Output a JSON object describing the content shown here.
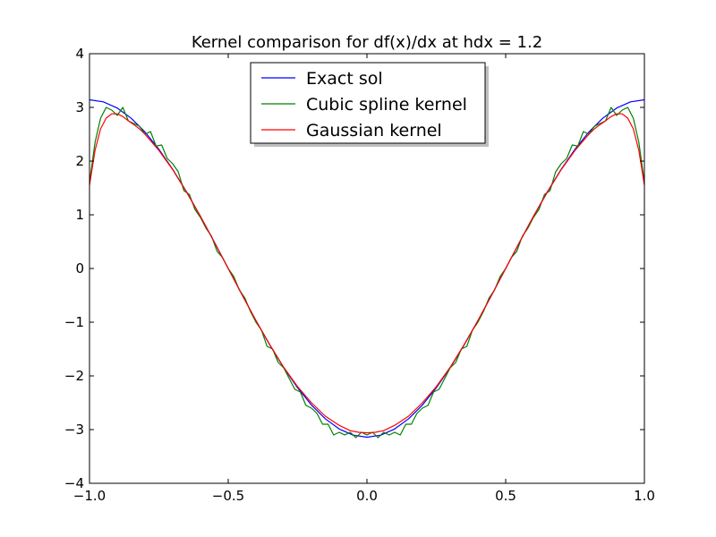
{
  "chart_data": {
    "type": "line",
    "title": "Kernel comparison for df(x)/dx at hdx = 1.2",
    "xlabel": "",
    "ylabel": "",
    "xlim": [
      -1.0,
      1.0
    ],
    "ylim": [
      -4,
      4
    ],
    "grid": false,
    "legend_position": "top-center",
    "xticks": [
      {
        "value": -1.0,
        "label": "−1.0"
      },
      {
        "value": -0.5,
        "label": "−0.5"
      },
      {
        "value": 0.0,
        "label": "0.0"
      },
      {
        "value": 0.5,
        "label": "0.5"
      },
      {
        "value": 1.0,
        "label": "1.0"
      }
    ],
    "yticks": [
      {
        "value": -4,
        "label": "−4"
      },
      {
        "value": -3,
        "label": "−3"
      },
      {
        "value": -2,
        "label": "−2"
      },
      {
        "value": -1,
        "label": "−1"
      },
      {
        "value": 0,
        "label": "0"
      },
      {
        "value": 1,
        "label": "1"
      },
      {
        "value": 2,
        "label": "2"
      },
      {
        "value": 3,
        "label": "3"
      },
      {
        "value": 4,
        "label": "4"
      }
    ],
    "series": [
      {
        "name": "Exact sol",
        "color": "#0000ff",
        "x": [
          -1.0,
          -0.95,
          -0.9,
          -0.85,
          -0.8,
          -0.75,
          -0.7,
          -0.65,
          -0.6,
          -0.55,
          -0.5,
          -0.45,
          -0.4,
          -0.35,
          -0.3,
          -0.25,
          -0.2,
          -0.15,
          -0.1,
          -0.05,
          0.0,
          0.05,
          0.1,
          0.15,
          0.2,
          0.25,
          0.3,
          0.35,
          0.4,
          0.45,
          0.5,
          0.55,
          0.6,
          0.65,
          0.7,
          0.75,
          0.8,
          0.85,
          0.9,
          0.95,
          1.0
        ],
        "y": [
          3.142,
          3.103,
          2.988,
          2.799,
          2.542,
          2.221,
          1.847,
          1.426,
          0.971,
          0.491,
          0.0,
          -0.491,
          -0.971,
          -1.426,
          -1.847,
          -2.221,
          -2.542,
          -2.799,
          -2.988,
          -3.103,
          -3.142,
          -3.103,
          -2.988,
          -2.799,
          -2.542,
          -2.221,
          -1.847,
          -1.426,
          -0.971,
          -0.491,
          0.0,
          0.491,
          0.971,
          1.426,
          1.847,
          2.221,
          2.542,
          2.799,
          2.988,
          3.103,
          3.142
        ]
      },
      {
        "name": "Cubic spline kernel",
        "color": "#008000",
        "x": [
          -1.0,
          -0.98,
          -0.96,
          -0.94,
          -0.92,
          -0.9,
          -0.88,
          -0.86,
          -0.84,
          -0.82,
          -0.8,
          -0.78,
          -0.76,
          -0.74,
          -0.72,
          -0.7,
          -0.68,
          -0.66,
          -0.64,
          -0.62,
          -0.6,
          -0.58,
          -0.56,
          -0.54,
          -0.52,
          -0.5,
          -0.48,
          -0.46,
          -0.44,
          -0.42,
          -0.4,
          -0.38,
          -0.36,
          -0.34,
          -0.32,
          -0.3,
          -0.28,
          -0.26,
          -0.24,
          -0.22,
          -0.2,
          -0.18,
          -0.16,
          -0.14,
          -0.12,
          -0.1,
          -0.08,
          -0.06,
          -0.04,
          -0.02,
          0.0,
          0.02,
          0.04,
          0.06,
          0.08,
          0.1,
          0.12,
          0.14,
          0.16,
          0.18,
          0.2,
          0.22,
          0.24,
          0.26,
          0.28,
          0.3,
          0.32,
          0.34,
          0.36,
          0.38,
          0.4,
          0.42,
          0.44,
          0.46,
          0.48,
          0.5,
          0.52,
          0.54,
          0.56,
          0.58,
          0.6,
          0.62,
          0.64,
          0.66,
          0.68,
          0.7,
          0.72,
          0.74,
          0.76,
          0.78,
          0.8,
          0.82,
          0.84,
          0.86,
          0.88,
          0.9,
          0.92,
          0.94,
          0.96,
          0.98,
          1.0
        ],
        "y": [
          1.6,
          2.35,
          2.8,
          3.0,
          2.95,
          2.85,
          3.0,
          2.75,
          2.7,
          2.65,
          2.5,
          2.55,
          2.28,
          2.3,
          2.05,
          1.95,
          1.8,
          1.45,
          1.38,
          1.1,
          0.95,
          0.75,
          0.6,
          0.32,
          0.2,
          0.0,
          -0.15,
          -0.4,
          -0.55,
          -0.8,
          -1.0,
          -1.15,
          -1.45,
          -1.5,
          -1.75,
          -1.85,
          -2.05,
          -2.25,
          -2.3,
          -2.55,
          -2.6,
          -2.7,
          -2.9,
          -2.9,
          -3.1,
          -3.05,
          -3.1,
          -3.05,
          -3.15,
          -3.05,
          -3.1,
          -3.05,
          -3.15,
          -3.05,
          -3.1,
          -3.05,
          -3.1,
          -2.9,
          -2.9,
          -2.7,
          -2.6,
          -2.55,
          -2.3,
          -2.25,
          -2.05,
          -1.85,
          -1.75,
          -1.5,
          -1.45,
          -1.15,
          -1.0,
          -0.8,
          -0.55,
          -0.4,
          -0.15,
          0.0,
          0.2,
          0.32,
          0.6,
          0.75,
          0.95,
          1.1,
          1.38,
          1.45,
          1.8,
          1.95,
          2.05,
          2.3,
          2.28,
          2.55,
          2.5,
          2.65,
          2.7,
          2.75,
          3.0,
          2.85,
          2.95,
          3.0,
          2.8,
          2.35,
          1.6
        ]
      },
      {
        "name": "Gaussian kernel",
        "color": "#ff0000",
        "x": [
          -1.0,
          -0.98,
          -0.96,
          -0.94,
          -0.92,
          -0.9,
          -0.88,
          -0.86,
          -0.84,
          -0.82,
          -0.8,
          -0.75,
          -0.7,
          -0.65,
          -0.6,
          -0.55,
          -0.5,
          -0.45,
          -0.4,
          -0.35,
          -0.3,
          -0.25,
          -0.2,
          -0.15,
          -0.1,
          -0.06,
          -0.03,
          0.0,
          0.03,
          0.06,
          0.1,
          0.15,
          0.2,
          0.25,
          0.3,
          0.35,
          0.4,
          0.45,
          0.5,
          0.55,
          0.6,
          0.65,
          0.7,
          0.75,
          0.8,
          0.82,
          0.84,
          0.86,
          0.88,
          0.9,
          0.92,
          0.94,
          0.96,
          0.98,
          1.0
        ],
        "y": [
          1.55,
          2.2,
          2.6,
          2.8,
          2.88,
          2.88,
          2.83,
          2.75,
          2.68,
          2.6,
          2.5,
          2.2,
          1.84,
          1.42,
          0.97,
          0.49,
          0.0,
          -0.49,
          -0.97,
          -1.42,
          -1.84,
          -2.2,
          -2.5,
          -2.75,
          -2.92,
          -3.02,
          -3.05,
          -3.06,
          -3.05,
          -3.02,
          -2.92,
          -2.75,
          -2.5,
          -2.2,
          -1.84,
          -1.42,
          -0.97,
          -0.49,
          0.0,
          0.49,
          0.97,
          1.42,
          1.84,
          2.2,
          2.5,
          2.6,
          2.68,
          2.75,
          2.83,
          2.88,
          2.88,
          2.8,
          2.6,
          2.2,
          1.55
        ]
      }
    ]
  }
}
